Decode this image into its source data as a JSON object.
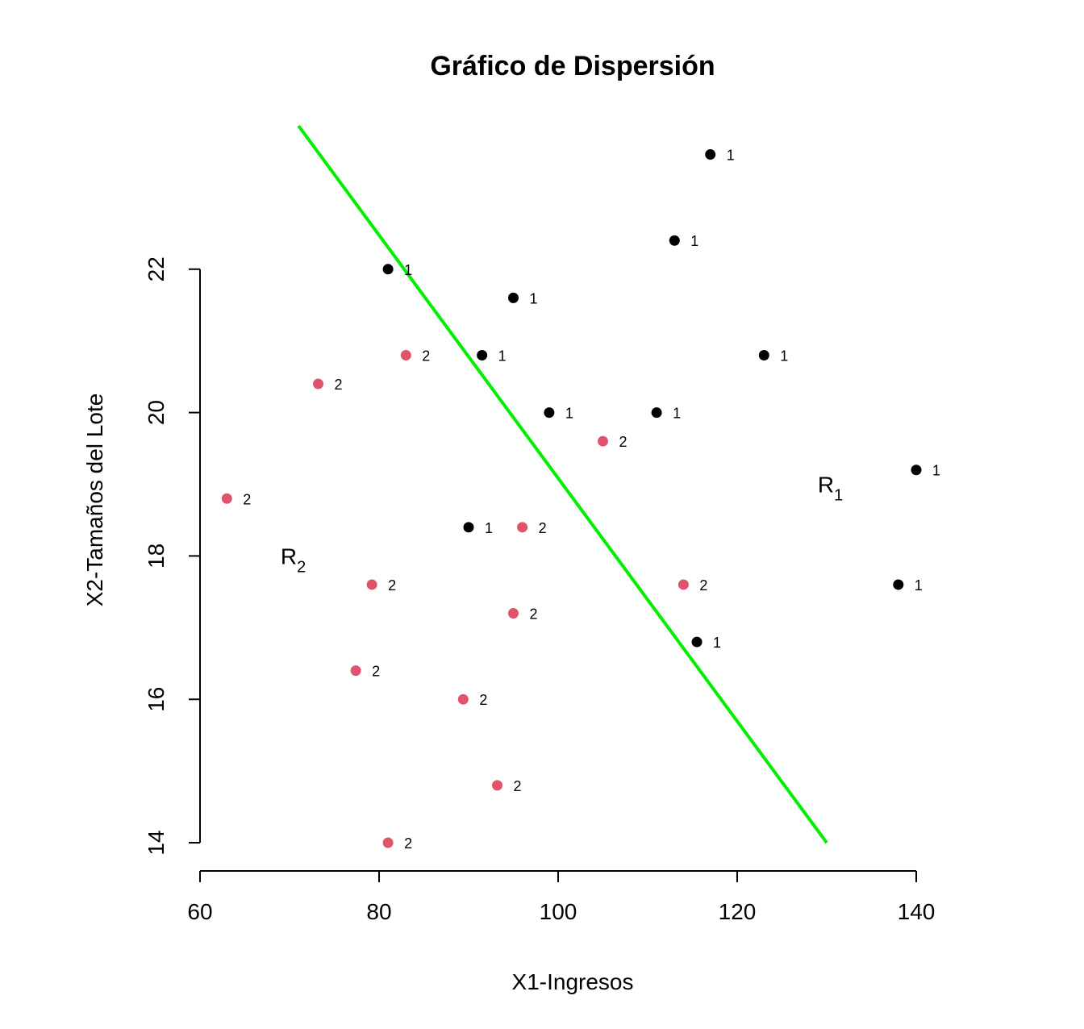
{
  "chart_data": {
    "type": "scatter",
    "title": "Gráfico de Dispersión",
    "xlabel": "X1-Ingresos",
    "ylabel": "X2-Tamaños del Lote",
    "xlim": [
      60,
      140
    ],
    "ylim": [
      14,
      24
    ],
    "x_ticks": [
      "60",
      "80",
      "100",
      "120",
      "140"
    ],
    "y_ticks": [
      "14",
      "16",
      "18",
      "20",
      "22"
    ],
    "colors": {
      "1": "#000000",
      "2": "#DF536B",
      "line": "#00EE00"
    },
    "points": [
      {
        "x": 81.0,
        "y": 22.0,
        "group": "1"
      },
      {
        "x": 117.0,
        "y": 23.6,
        "group": "1"
      },
      {
        "x": 113.0,
        "y": 22.4,
        "group": "1"
      },
      {
        "x": 95.0,
        "y": 21.6,
        "group": "1"
      },
      {
        "x": 91.5,
        "y": 20.8,
        "group": "1"
      },
      {
        "x": 123.0,
        "y": 20.8,
        "group": "1"
      },
      {
        "x": 99.0,
        "y": 20.0,
        "group": "1"
      },
      {
        "x": 111.0,
        "y": 20.0,
        "group": "1"
      },
      {
        "x": 140.0,
        "y": 19.2,
        "group": "1"
      },
      {
        "x": 90.0,
        "y": 18.4,
        "group": "1"
      },
      {
        "x": 138.0,
        "y": 17.6,
        "group": "1"
      },
      {
        "x": 115.5,
        "y": 16.8,
        "group": "1"
      },
      {
        "x": 83.0,
        "y": 20.8,
        "group": "2"
      },
      {
        "x": 73.2,
        "y": 20.4,
        "group": "2"
      },
      {
        "x": 105.0,
        "y": 19.6,
        "group": "2"
      },
      {
        "x": 63.0,
        "y": 18.8,
        "group": "2"
      },
      {
        "x": 96.0,
        "y": 18.4,
        "group": "2"
      },
      {
        "x": 79.2,
        "y": 17.6,
        "group": "2"
      },
      {
        "x": 114.0,
        "y": 17.6,
        "group": "2"
      },
      {
        "x": 95.0,
        "y": 17.2,
        "group": "2"
      },
      {
        "x": 77.4,
        "y": 16.4,
        "group": "2"
      },
      {
        "x": 89.4,
        "y": 16.0,
        "group": "2"
      },
      {
        "x": 93.2,
        "y": 14.8,
        "group": "2"
      },
      {
        "x": 81.0,
        "y": 14.0,
        "group": "2"
      }
    ],
    "line": {
      "x1": 71.0,
      "y1": 24.0,
      "x2": 130.0,
      "y2": 14.0
    },
    "regions": [
      {
        "label": "R",
        "sub": "1",
        "x": 129.0,
        "y": 19.0
      },
      {
        "label": "R",
        "sub": "2",
        "x": 69.0,
        "y": 18.0
      }
    ]
  }
}
